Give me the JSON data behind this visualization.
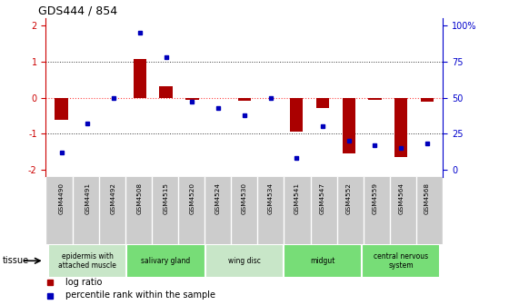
{
  "title": "GDS444 / 854",
  "samples": [
    "GSM4490",
    "GSM4491",
    "GSM4492",
    "GSM4508",
    "GSM4515",
    "GSM4520",
    "GSM4524",
    "GSM4530",
    "GSM4534",
    "GSM4541",
    "GSM4547",
    "GSM4552",
    "GSM4559",
    "GSM4564",
    "GSM4568"
  ],
  "log_ratio": [
    -0.62,
    0.0,
    0.0,
    1.07,
    0.32,
    -0.05,
    0.0,
    -0.08,
    0.0,
    -0.95,
    -0.28,
    -1.55,
    -0.05,
    -1.65,
    -0.12
  ],
  "percentile": [
    12,
    32,
    50,
    95,
    78,
    47,
    43,
    38,
    50,
    8,
    30,
    20,
    17,
    15,
    18
  ],
  "tissue_groups": [
    {
      "label": "epidermis with\nattached muscle",
      "start": 0,
      "end": 3,
      "color": "#c8e6c8"
    },
    {
      "label": "salivary gland",
      "start": 3,
      "end": 6,
      "color": "#77dd77"
    },
    {
      "label": "wing disc",
      "start": 6,
      "end": 9,
      "color": "#c8e6c8"
    },
    {
      "label": "midgut",
      "start": 9,
      "end": 12,
      "color": "#77dd77"
    },
    {
      "label": "central nervous\nsystem",
      "start": 12,
      "end": 15,
      "color": "#77dd77"
    }
  ],
  "ylim_left": [
    -2.2,
    2.2
  ],
  "ylim_right_labels": [
    "0",
    "25",
    "50",
    "75",
    "100%"
  ],
  "bar_color": "#aa0000",
  "dot_color": "#0000bb",
  "bg_color": "#ffffff",
  "zero_line_color": "#ff4444",
  "dot_line_color": "#333333",
  "sample_bg_color": "#cccccc",
  "left_tick_color": "#cc0000",
  "right_tick_color": "#0000cc"
}
